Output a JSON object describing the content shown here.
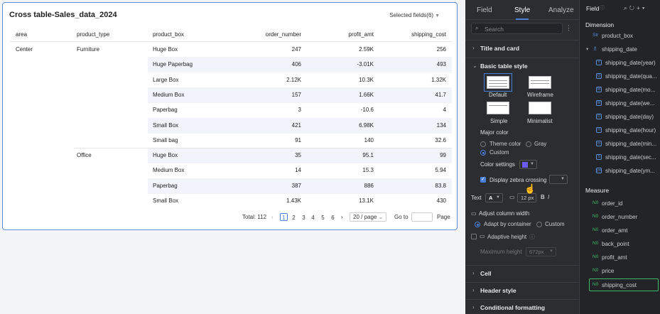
{
  "card": {
    "title": "Cross table-Sales_data_2024",
    "selected_fields": "Selected fields(6)"
  },
  "table": {
    "columns": [
      "area",
      "product_type",
      "product_box",
      "order_number",
      "profit_amt",
      "shipping_cost"
    ],
    "rows": [
      {
        "area": "Center",
        "type": "Furniture",
        "box": "Huge Box",
        "order": "247",
        "profit": "2.59K",
        "ship": "256"
      },
      {
        "area": "",
        "type": "",
        "box": "Huge Paperbag",
        "order": "406",
        "profit": "-3.01K",
        "ship": "493"
      },
      {
        "area": "",
        "type": "",
        "box": "Large Box",
        "order": "2.12K",
        "profit": "10.3K",
        "ship": "1.32K"
      },
      {
        "area": "",
        "type": "",
        "box": "Medium Box",
        "order": "157",
        "profit": "1.66K",
        "ship": "41.7"
      },
      {
        "area": "",
        "type": "",
        "box": "Paperbag",
        "order": "3",
        "profit": "-10.6",
        "ship": "4"
      },
      {
        "area": "",
        "type": "",
        "box": "Small Box",
        "order": "421",
        "profit": "6.98K",
        "ship": "134"
      },
      {
        "area": "",
        "type": "",
        "box": "Small bag",
        "order": "91",
        "profit": "140",
        "ship": "32.6"
      },
      {
        "area": "",
        "type": "Office",
        "box": "Huge Box",
        "order": "35",
        "profit": "95.1",
        "ship": "99"
      },
      {
        "area": "",
        "type": "",
        "box": "Medium Box",
        "order": "14",
        "profit": "15.3",
        "ship": "5.94"
      },
      {
        "area": "",
        "type": "",
        "box": "Paperbag",
        "order": "387",
        "profit": "886",
        "ship": "83.8"
      },
      {
        "area": "",
        "type": "",
        "box": "Small Box",
        "order": "1.43K",
        "profit": "13.1K",
        "ship": "430"
      }
    ]
  },
  "pager": {
    "total": "Total: 112",
    "prev": "‹",
    "pages": [
      "1",
      "2",
      "3",
      "4",
      "5",
      "6"
    ],
    "next": "›",
    "page_size": "20 / page",
    "goto": "Go to",
    "page_label": "Page"
  },
  "style_panel": {
    "tabs": [
      "Field",
      "Style",
      "Analyze"
    ],
    "search_placeholder": "Search",
    "sections": {
      "title_card": "Title and card",
      "basic": "Basic table style",
      "cell": "Cell",
      "header": "Header style",
      "conditional": "Conditional formatting"
    },
    "table_styles": [
      "Default",
      "Wireframe",
      "Simple",
      "Minimalist"
    ],
    "major_color": "Major color",
    "color_options": [
      "Theme color",
      "Gray",
      "Custom"
    ],
    "color_settings": "Color settings",
    "color_swatch": "#6b5cf0",
    "zebra": "Display zebra crossing",
    "text_label": "Text",
    "text_color_glyph": "A",
    "font_size": "12 px",
    "bold": "B",
    "italic": "I",
    "adjust_width": "Adjust column width",
    "width_options": [
      "Adapt by container",
      "Custom"
    ],
    "adaptive_height": "Adaptive height",
    "max_height": "Maximum height",
    "max_height_value": "672px"
  },
  "field_panel": {
    "title": "Field",
    "dimension": "Dimension",
    "dimension_items": [
      {
        "icon": "Str",
        "name": "product_box"
      },
      {
        "icon": "tree",
        "name": "shipping_date"
      },
      {
        "icon": "Y",
        "name": "shipping_date(year)"
      },
      {
        "icon": "Q",
        "name": "shipping_date(qua..."
      },
      {
        "icon": "M",
        "name": "shipping_date(mo..."
      },
      {
        "icon": "W",
        "name": "shipping_date(we..."
      },
      {
        "icon": "D",
        "name": "shipping_date(day)"
      },
      {
        "icon": "H",
        "name": "shipping_date(hour)"
      },
      {
        "icon": "m",
        "name": "shipping_date(min..."
      },
      {
        "icon": "S",
        "name": "shipping_date(sec..."
      },
      {
        "icon": "ym",
        "name": "shipping_date(ym..."
      }
    ],
    "measure": "Measure",
    "measure_items": [
      "order_id",
      "order_number",
      "order_amt",
      "back_point",
      "profit_amt",
      "price",
      "shipping_cost"
    ],
    "measure_icon": "N0"
  }
}
